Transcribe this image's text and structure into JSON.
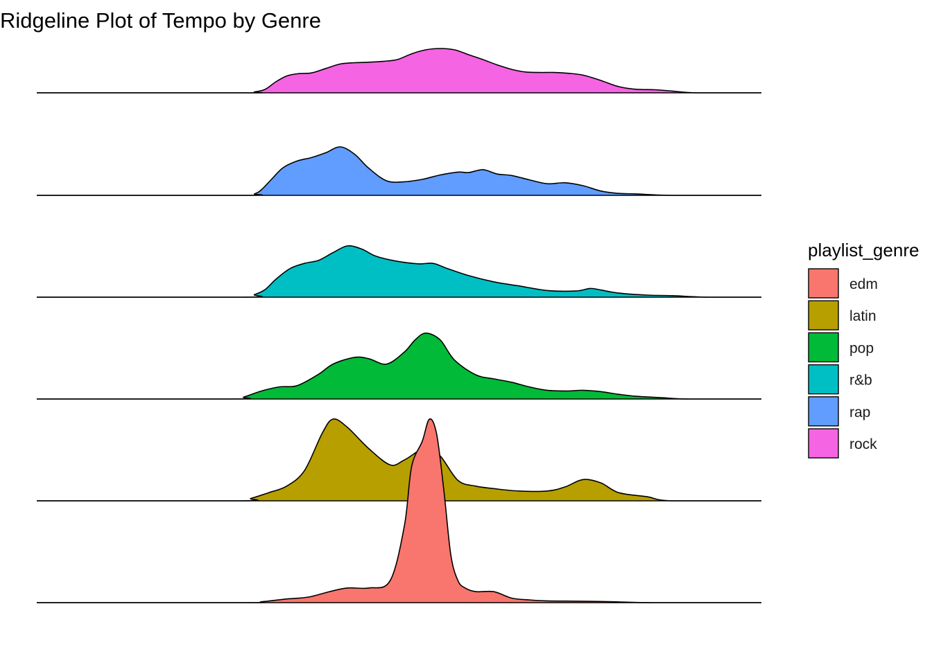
{
  "chart_data": {
    "type": "ridgeline",
    "title": "Ridgeline Plot of Tempo by Genre",
    "xlabel": "",
    "ylabel": "",
    "grid": false,
    "legend_title": "playlist_genre",
    "legend_position": "right",
    "xlim": [
      37,
      240
    ],
    "series": [
      {
        "name": "rock",
        "color": "#F564E3",
        "x": [
          37,
          95,
          98,
          101,
          104,
          107,
          110,
          114,
          118,
          122,
          126,
          130,
          134,
          138,
          142,
          146,
          150,
          154,
          158,
          162,
          166,
          170,
          174,
          178,
          182,
          186,
          190,
          195,
          200,
          205,
          210,
          215,
          222,
          240
        ],
        "density": [
          0,
          0,
          0.02,
          0.08,
          0.25,
          0.38,
          0.43,
          0.45,
          0.55,
          0.65,
          0.68,
          0.69,
          0.71,
          0.75,
          0.88,
          0.97,
          1.0,
          0.97,
          0.86,
          0.75,
          0.63,
          0.53,
          0.47,
          0.46,
          0.46,
          0.44,
          0.4,
          0.28,
          0.14,
          0.08,
          0.07,
          0.04,
          0,
          0
        ]
      },
      {
        "name": "rap",
        "color": "#619CFF",
        "x": [
          37,
          95,
          98,
          100,
          103,
          106,
          110,
          114,
          118,
          122,
          126,
          130,
          135,
          140,
          145,
          150,
          155,
          158,
          162,
          166,
          170,
          175,
          180,
          185,
          190,
          195,
          200,
          205,
          215,
          240
        ],
        "density": [
          0,
          0,
          0.03,
          0.12,
          0.35,
          0.57,
          0.71,
          0.78,
          0.88,
          1.0,
          0.85,
          0.56,
          0.3,
          0.28,
          0.33,
          0.42,
          0.48,
          0.47,
          0.53,
          0.44,
          0.41,
          0.32,
          0.24,
          0.26,
          0.2,
          0.09,
          0.04,
          0.03,
          0,
          0
        ]
      },
      {
        "name": "r&b",
        "color": "#00BFC4",
        "x": [
          37,
          95,
          98,
          101,
          104,
          108,
          112,
          116,
          120,
          124,
          128,
          132,
          138,
          144,
          148,
          152,
          158,
          165,
          172,
          180,
          188,
          192,
          195,
          200,
          208,
          215,
          225,
          240
        ],
        "density": [
          0,
          0,
          0.05,
          0.15,
          0.35,
          0.56,
          0.66,
          0.72,
          0.87,
          1.0,
          0.94,
          0.8,
          0.7,
          0.65,
          0.66,
          0.56,
          0.42,
          0.3,
          0.22,
          0.13,
          0.12,
          0.17,
          0.14,
          0.08,
          0.04,
          0.03,
          0,
          0
        ]
      },
      {
        "name": "pop",
        "color": "#00BA38",
        "x": [
          37,
          92,
          95,
          100,
          105,
          110,
          116,
          120,
          126,
          130,
          135,
          140,
          143,
          146,
          150,
          154,
          160,
          165,
          170,
          175,
          180,
          186,
          190,
          195,
          200,
          205,
          212,
          220,
          240
        ],
        "density": [
          0,
          0,
          0.03,
          0.12,
          0.18,
          0.2,
          0.37,
          0.52,
          0.62,
          0.6,
          0.52,
          0.7,
          0.88,
          0.98,
          0.88,
          0.58,
          0.36,
          0.3,
          0.25,
          0.18,
          0.13,
          0.12,
          0.13,
          0.11,
          0.07,
          0.04,
          0.02,
          0,
          0
        ]
      },
      {
        "name": "latin",
        "color": "#B79F00",
        "x": [
          37,
          94,
          97,
          102,
          107,
          112,
          117,
          120,
          124,
          130,
          136,
          140,
          146,
          150,
          155,
          160,
          165,
          172,
          180,
          185,
          190,
          195,
          200,
          208,
          215,
          240
        ],
        "density": [
          0,
          0,
          0.03,
          0.1,
          0.18,
          0.37,
          0.83,
          1.0,
          0.9,
          0.64,
          0.44,
          0.5,
          0.65,
          0.55,
          0.25,
          0.18,
          0.15,
          0.12,
          0.12,
          0.17,
          0.26,
          0.22,
          0.1,
          0.05,
          0,
          0
        ]
      },
      {
        "name": "edm",
        "color": "#F8766D",
        "x": [
          37,
          95,
          100,
          107,
          113,
          119,
          124,
          130,
          136,
          140,
          142,
          145,
          147,
          149,
          151,
          153,
          155,
          157,
          160,
          165,
          170,
          175,
          180,
          190,
          200,
          210,
          240
        ],
        "density": [
          0,
          0,
          0.005,
          0.02,
          0.03,
          0.06,
          0.08,
          0.08,
          0.12,
          0.42,
          0.74,
          0.88,
          1.0,
          0.92,
          0.62,
          0.26,
          0.12,
          0.08,
          0.06,
          0.06,
          0.025,
          0.015,
          0.01,
          0.008,
          0.004,
          0,
          0
        ]
      }
    ],
    "legend": [
      {
        "name": "edm",
        "color": "#F8766D"
      },
      {
        "name": "latin",
        "color": "#B79F00"
      },
      {
        "name": "pop",
        "color": "#00BA38"
      },
      {
        "name": "r&b",
        "color": "#00BFC4"
      },
      {
        "name": "rap",
        "color": "#619CFF"
      },
      {
        "name": "rock",
        "color": "#F564E3"
      }
    ]
  }
}
